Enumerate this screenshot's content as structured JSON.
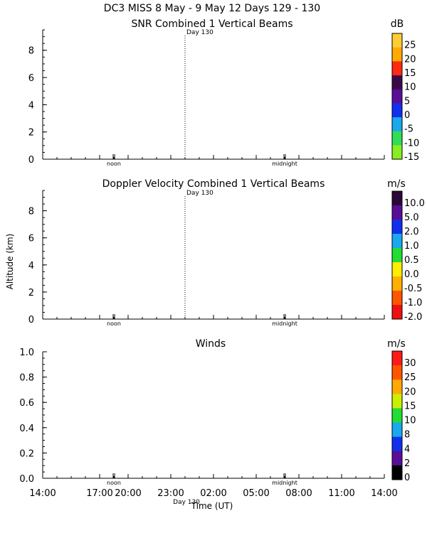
{
  "header": {
    "title": "DC3 MISS   8 May -  9 May 12 Days 129 - 130"
  },
  "shared": {
    "ylabel": "Altitude (km)",
    "xlabel": "Time (UT)",
    "day_marker": "Day 130",
    "noon_label": "noon",
    "midnight_label": "midnight"
  },
  "chart_data": [
    {
      "type": "heatmap",
      "title": "SNR Combined 1 Vertical Beams",
      "ylim": [
        0,
        9.5
      ],
      "yticks": [
        "0",
        "2",
        "4",
        "6",
        "8"
      ],
      "colorbar": {
        "unit": "dB",
        "labels": [
          "25",
          "20",
          "15",
          "10",
          "5",
          "0",
          "-5",
          "-10",
          "-15"
        ],
        "colors": [
          "#ffcc33",
          "#ffaa00",
          "#ff2a10",
          "#3a0a48",
          "#5a0d96",
          "#1030ee",
          "#1aa8ee",
          "#30dd55",
          "#88ee22"
        ]
      },
      "values": []
    },
    {
      "type": "heatmap",
      "title": "Doppler Velocity Combined 1 Vertical Beams",
      "ylim": [
        0,
        9.5
      ],
      "yticks": [
        "0",
        "2",
        "4",
        "6",
        "8"
      ],
      "colorbar": {
        "unit": "m/s",
        "labels": [
          "10.0",
          "5.0",
          "2.0",
          "1.0",
          "0.5",
          "0.0",
          "-0.5",
          "-1.0",
          "-2.0"
        ],
        "colors": [
          "#2a0838",
          "#5a0d96",
          "#1030ee",
          "#1aa8ee",
          "#22dd33",
          "#ffee00",
          "#ffb000",
          "#ff5500",
          "#ee1111"
        ]
      },
      "values": []
    },
    {
      "type": "scatter",
      "title": "Winds",
      "ylim": [
        0,
        1.0
      ],
      "yticks": [
        "0.0",
        "0.2",
        "0.4",
        "0.6",
        "0.8",
        "1.0"
      ],
      "xticks": [
        "14:00",
        "17:00",
        "20:00",
        "23:00",
        "02:00",
        "05:00",
        "08:00",
        "11:00",
        "14:00"
      ],
      "colorbar": {
        "unit": "m/s",
        "labels": [
          "30",
          "25",
          "20",
          "15",
          "10",
          "8",
          "4",
          "2",
          "0"
        ],
        "colors": [
          "#ff1a1a",
          "#ff5500",
          "#ffaa00",
          "#ccee00",
          "#22dd33",
          "#1aa8ee",
          "#1030ee",
          "#5a0d96",
          "#000000"
        ]
      },
      "values": []
    }
  ]
}
